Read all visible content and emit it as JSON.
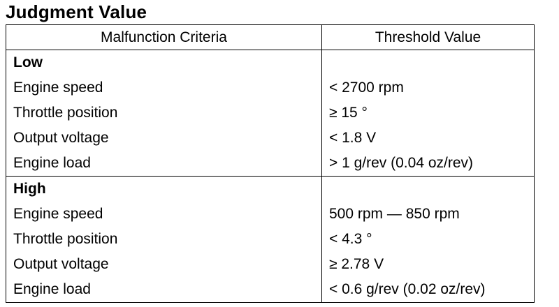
{
  "title": "Judgment Value",
  "table": {
    "headers": [
      "Malfunction Criteria",
      "Threshold Value"
    ],
    "groups": [
      {
        "label": "Low",
        "rows": [
          {
            "criteria": "Engine speed",
            "threshold": "< 2700 rpm"
          },
          {
            "criteria": "Throttle position",
            "threshold": "≥ 15 °"
          },
          {
            "criteria": "Output voltage",
            "threshold": "< 1.8 V"
          },
          {
            "criteria": "Engine load",
            "threshold": "> 1 g/rev (0.04 oz/rev)"
          }
        ]
      },
      {
        "label": "High",
        "rows": [
          {
            "criteria": "Engine speed",
            "threshold": "500 rpm — 850 rpm"
          },
          {
            "criteria": "Throttle position",
            "threshold": "< 4.3 °"
          },
          {
            "criteria": "Output voltage",
            "threshold": "≥ 2.78 V"
          },
          {
            "criteria": "Engine load",
            "threshold": "< 0.6 g/rev (0.02 oz/rev)"
          }
        ]
      }
    ]
  }
}
